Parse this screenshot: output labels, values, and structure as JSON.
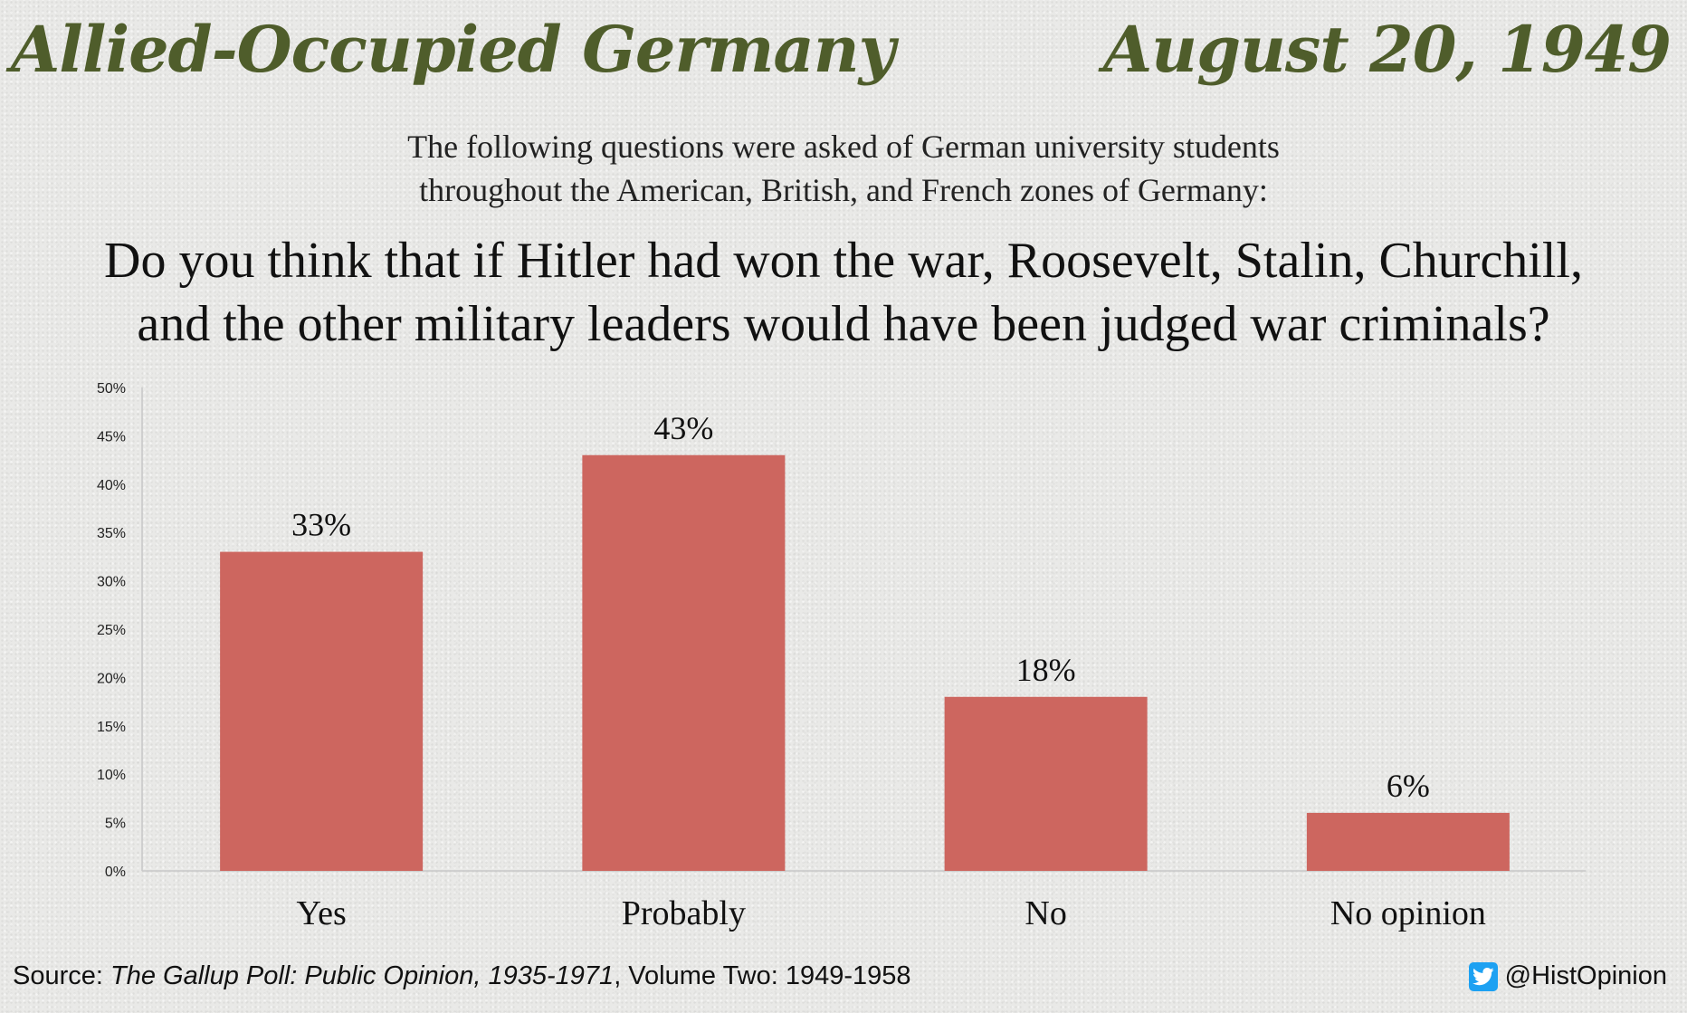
{
  "header": {
    "location": "Allied-Occupied Germany",
    "date": "August 20, 1949"
  },
  "intro": {
    "line1": "The following questions were asked of German university students",
    "line2": "throughout the American, British, and French zones of Germany:"
  },
  "question": {
    "line1": "Do you think that if Hitler had won the war, Roosevelt, Stalin, Churchill,",
    "line2": "and the other military leaders would have been judged war criminals?"
  },
  "chart_data": {
    "type": "bar",
    "categories": [
      "Yes",
      "Probably",
      "No",
      "No opinion"
    ],
    "values": [
      33,
      43,
      18,
      6
    ],
    "value_labels": [
      "33%",
      "43%",
      "18%",
      "6%"
    ],
    "y_ticks": [
      "0%",
      "5%",
      "10%",
      "15%",
      "20%",
      "25%",
      "30%",
      "35%",
      "40%",
      "45%",
      "50%"
    ],
    "ylim": [
      0,
      50
    ],
    "grid": false,
    "legend": "none",
    "bar_color": "#cd665f",
    "axis_color": "#c8c8c8"
  },
  "footer": {
    "source_prefix": "Source: ",
    "source_title": "The Gallup Poll: Public Opinion, 1935-1971",
    "source_suffix": ", Volume Two: 1949-1958",
    "handle": "@HistOpinion",
    "handle_icon": "twitter-icon",
    "twitter_color": "#1da1f2"
  }
}
